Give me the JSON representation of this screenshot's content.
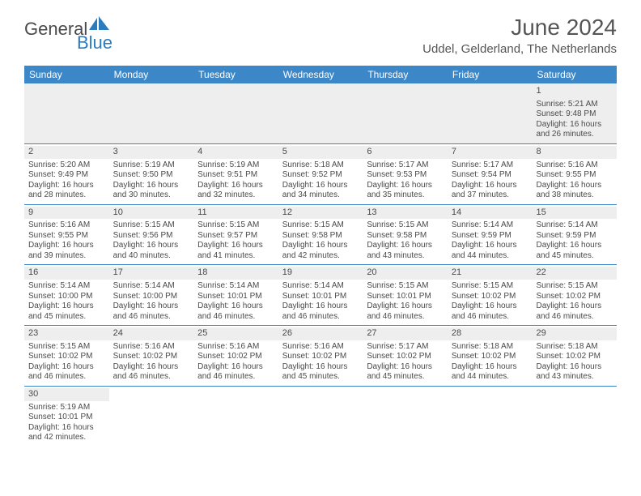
{
  "brand": {
    "part1": "General",
    "part2": "Blue"
  },
  "title": "June 2024",
  "location": "Uddel, Gelderland, The Netherlands",
  "colors": {
    "header_bar": "#3b87c8",
    "row_divider": "#3b87c8",
    "shade": "#eeeeee",
    "text": "#4a4a4a",
    "brand_blue": "#2b7bbf"
  },
  "dayNames": [
    "Sunday",
    "Monday",
    "Tuesday",
    "Wednesday",
    "Thursday",
    "Friday",
    "Saturday"
  ],
  "weeks": [
    [
      null,
      null,
      null,
      null,
      null,
      null,
      {
        "n": "1",
        "sr": "Sunrise: 5:21 AM",
        "ss": "Sunset: 9:48 PM",
        "d1": "Daylight: 16 hours",
        "d2": "and 26 minutes."
      }
    ],
    [
      {
        "n": "2",
        "sr": "Sunrise: 5:20 AM",
        "ss": "Sunset: 9:49 PM",
        "d1": "Daylight: 16 hours",
        "d2": "and 28 minutes."
      },
      {
        "n": "3",
        "sr": "Sunrise: 5:19 AM",
        "ss": "Sunset: 9:50 PM",
        "d1": "Daylight: 16 hours",
        "d2": "and 30 minutes."
      },
      {
        "n": "4",
        "sr": "Sunrise: 5:19 AM",
        "ss": "Sunset: 9:51 PM",
        "d1": "Daylight: 16 hours",
        "d2": "and 32 minutes."
      },
      {
        "n": "5",
        "sr": "Sunrise: 5:18 AM",
        "ss": "Sunset: 9:52 PM",
        "d1": "Daylight: 16 hours",
        "d2": "and 34 minutes."
      },
      {
        "n": "6",
        "sr": "Sunrise: 5:17 AM",
        "ss": "Sunset: 9:53 PM",
        "d1": "Daylight: 16 hours",
        "d2": "and 35 minutes."
      },
      {
        "n": "7",
        "sr": "Sunrise: 5:17 AM",
        "ss": "Sunset: 9:54 PM",
        "d1": "Daylight: 16 hours",
        "d2": "and 37 minutes."
      },
      {
        "n": "8",
        "sr": "Sunrise: 5:16 AM",
        "ss": "Sunset: 9:55 PM",
        "d1": "Daylight: 16 hours",
        "d2": "and 38 minutes."
      }
    ],
    [
      {
        "n": "9",
        "sr": "Sunrise: 5:16 AM",
        "ss": "Sunset: 9:55 PM",
        "d1": "Daylight: 16 hours",
        "d2": "and 39 minutes."
      },
      {
        "n": "10",
        "sr": "Sunrise: 5:15 AM",
        "ss": "Sunset: 9:56 PM",
        "d1": "Daylight: 16 hours",
        "d2": "and 40 minutes."
      },
      {
        "n": "11",
        "sr": "Sunrise: 5:15 AM",
        "ss": "Sunset: 9:57 PM",
        "d1": "Daylight: 16 hours",
        "d2": "and 41 minutes."
      },
      {
        "n": "12",
        "sr": "Sunrise: 5:15 AM",
        "ss": "Sunset: 9:58 PM",
        "d1": "Daylight: 16 hours",
        "d2": "and 42 minutes."
      },
      {
        "n": "13",
        "sr": "Sunrise: 5:15 AM",
        "ss": "Sunset: 9:58 PM",
        "d1": "Daylight: 16 hours",
        "d2": "and 43 minutes."
      },
      {
        "n": "14",
        "sr": "Sunrise: 5:14 AM",
        "ss": "Sunset: 9:59 PM",
        "d1": "Daylight: 16 hours",
        "d2": "and 44 minutes."
      },
      {
        "n": "15",
        "sr": "Sunrise: 5:14 AM",
        "ss": "Sunset: 9:59 PM",
        "d1": "Daylight: 16 hours",
        "d2": "and 45 minutes."
      }
    ],
    [
      {
        "n": "16",
        "sr": "Sunrise: 5:14 AM",
        "ss": "Sunset: 10:00 PM",
        "d1": "Daylight: 16 hours",
        "d2": "and 45 minutes."
      },
      {
        "n": "17",
        "sr": "Sunrise: 5:14 AM",
        "ss": "Sunset: 10:00 PM",
        "d1": "Daylight: 16 hours",
        "d2": "and 46 minutes."
      },
      {
        "n": "18",
        "sr": "Sunrise: 5:14 AM",
        "ss": "Sunset: 10:01 PM",
        "d1": "Daylight: 16 hours",
        "d2": "and 46 minutes."
      },
      {
        "n": "19",
        "sr": "Sunrise: 5:14 AM",
        "ss": "Sunset: 10:01 PM",
        "d1": "Daylight: 16 hours",
        "d2": "and 46 minutes."
      },
      {
        "n": "20",
        "sr": "Sunrise: 5:15 AM",
        "ss": "Sunset: 10:01 PM",
        "d1": "Daylight: 16 hours",
        "d2": "and 46 minutes."
      },
      {
        "n": "21",
        "sr": "Sunrise: 5:15 AM",
        "ss": "Sunset: 10:02 PM",
        "d1": "Daylight: 16 hours",
        "d2": "and 46 minutes."
      },
      {
        "n": "22",
        "sr": "Sunrise: 5:15 AM",
        "ss": "Sunset: 10:02 PM",
        "d1": "Daylight: 16 hours",
        "d2": "and 46 minutes."
      }
    ],
    [
      {
        "n": "23",
        "sr": "Sunrise: 5:15 AM",
        "ss": "Sunset: 10:02 PM",
        "d1": "Daylight: 16 hours",
        "d2": "and 46 minutes."
      },
      {
        "n": "24",
        "sr": "Sunrise: 5:16 AM",
        "ss": "Sunset: 10:02 PM",
        "d1": "Daylight: 16 hours",
        "d2": "and 46 minutes."
      },
      {
        "n": "25",
        "sr": "Sunrise: 5:16 AM",
        "ss": "Sunset: 10:02 PM",
        "d1": "Daylight: 16 hours",
        "d2": "and 46 minutes."
      },
      {
        "n": "26",
        "sr": "Sunrise: 5:16 AM",
        "ss": "Sunset: 10:02 PM",
        "d1": "Daylight: 16 hours",
        "d2": "and 45 minutes."
      },
      {
        "n": "27",
        "sr": "Sunrise: 5:17 AM",
        "ss": "Sunset: 10:02 PM",
        "d1": "Daylight: 16 hours",
        "d2": "and 45 minutes."
      },
      {
        "n": "28",
        "sr": "Sunrise: 5:18 AM",
        "ss": "Sunset: 10:02 PM",
        "d1": "Daylight: 16 hours",
        "d2": "and 44 minutes."
      },
      {
        "n": "29",
        "sr": "Sunrise: 5:18 AM",
        "ss": "Sunset: 10:02 PM",
        "d1": "Daylight: 16 hours",
        "d2": "and 43 minutes."
      }
    ],
    [
      {
        "n": "30",
        "sr": "Sunrise: 5:19 AM",
        "ss": "Sunset: 10:01 PM",
        "d1": "Daylight: 16 hours",
        "d2": "and 42 minutes."
      },
      null,
      null,
      null,
      null,
      null,
      null
    ]
  ]
}
